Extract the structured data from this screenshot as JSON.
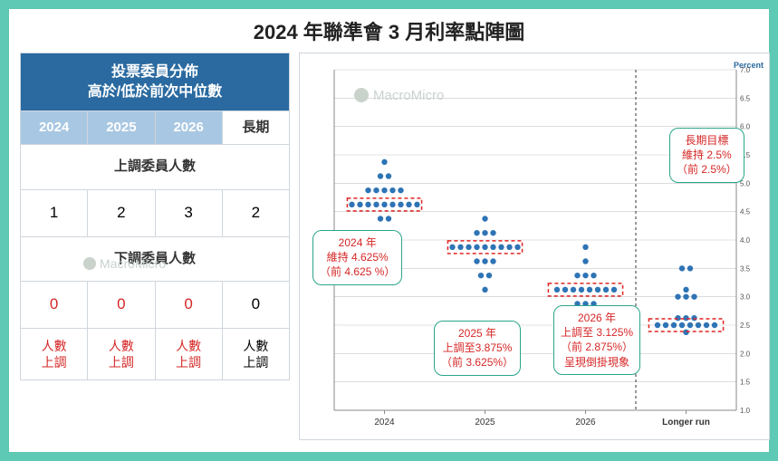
{
  "title": "2024 年聯準會 3 月利率點陣圖",
  "watermark": "MacroMicro",
  "table": {
    "header": "投票委員分佈\n高於/低於前次中位數",
    "cols": [
      "2024",
      "2025",
      "2026",
      "長期"
    ],
    "section_up": "上調委員人數",
    "row_up": [
      "1",
      "2",
      "3",
      "2"
    ],
    "section_down": "下調委員人數",
    "row_down": [
      "0",
      "0",
      "0",
      "0"
    ],
    "row_down_red": [
      true,
      true,
      true,
      false
    ],
    "foot": [
      "人數\n上調",
      "人數\n上調",
      "人數\n上調",
      "人數\n上調"
    ],
    "foot_red": [
      true,
      true,
      true,
      false
    ]
  },
  "callouts": {
    "c2024": "2024 年\n維持 4.625%\n（前 4.625 %）",
    "c2025": "2025 年\n上調至3.875%\n（前 3.625%）",
    "c2026": "2026 年\n上調至 3.125%\n（前 2.875%）\n呈現倒掛現象",
    "clr": "長期目標\n維持 2.5%\n（前 2.5%）"
  },
  "chart": {
    "type": "dotplot",
    "axis_label": "Percent",
    "bg": "#ffffff",
    "grid_color": "#c7c7c7",
    "dot_color": "#2e74b5",
    "dot_radius": 3.2,
    "divider_color": "#333333",
    "highlight_stroke": "#e02424",
    "highlight_dash": "4,3",
    "x_categories": [
      "2024",
      "2025",
      "2026",
      "Longer run"
    ],
    "y_min": 1.0,
    "y_max": 7.0,
    "y_tick_step": 0.5,
    "median_boxes": [
      {
        "cat": "2024",
        "y": 4.625
      },
      {
        "cat": "2025",
        "y": 3.875
      },
      {
        "cat": "2026",
        "y": 3.125
      },
      {
        "cat": "Longer run",
        "y": 2.5
      }
    ],
    "series": {
      "2024": [
        {
          "y": 4.375,
          "n": 2
        },
        {
          "y": 4.625,
          "n": 9
        },
        {
          "y": 4.875,
          "n": 5
        },
        {
          "y": 5.125,
          "n": 2
        },
        {
          "y": 5.375,
          "n": 1
        }
      ],
      "2025": [
        {
          "y": 3.125,
          "n": 1
        },
        {
          "y": 3.375,
          "n": 2
        },
        {
          "y": 3.625,
          "n": 3
        },
        {
          "y": 3.875,
          "n": 9
        },
        {
          "y": 4.125,
          "n": 3
        },
        {
          "y": 4.375,
          "n": 1
        }
      ],
      "2026": [
        {
          "y": 2.375,
          "n": 1
        },
        {
          "y": 2.625,
          "n": 2
        },
        {
          "y": 2.875,
          "n": 3
        },
        {
          "y": 3.125,
          "n": 8
        },
        {
          "y": 3.375,
          "n": 3
        },
        {
          "y": 3.625,
          "n": 1
        },
        {
          "y": 3.875,
          "n": 1
        }
      ],
      "Longer run": [
        {
          "y": 2.375,
          "n": 1
        },
        {
          "y": 2.5,
          "n": 8
        },
        {
          "y": 2.625,
          "n": 3
        },
        {
          "y": 3.0,
          "n": 3
        },
        {
          "y": 3.125,
          "n": 1
        },
        {
          "y": 3.5,
          "n": 2
        }
      ]
    }
  }
}
